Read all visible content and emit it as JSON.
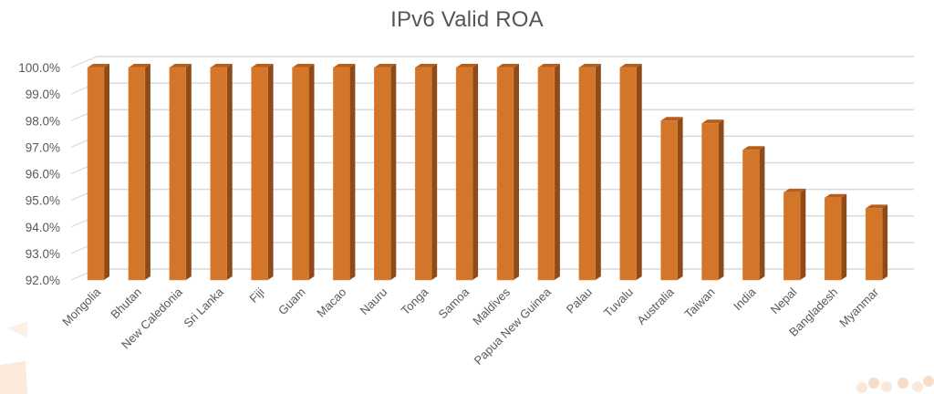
{
  "chart_data": {
    "type": "bar",
    "title": "IPv6 Valid ROA",
    "xlabel": "",
    "ylabel": "",
    "ylim": [
      92.0,
      100.0
    ],
    "yticks": [
      "92.0%",
      "93.0%",
      "94.0%",
      "95.0%",
      "96.0%",
      "97.0%",
      "98.0%",
      "99.0%",
      "100.0%"
    ],
    "grid": true,
    "legend": null,
    "style": "3d-column",
    "categories": [
      "Mongolia",
      "Bhutan",
      "New Caledonia",
      "Sri Lanka",
      "Fiji",
      "Guam",
      "Macao",
      "Nauru",
      "Tonga",
      "Samoa",
      "Maldives",
      "Papua New Guinea",
      "Palau",
      "Tuvalu",
      "Australia",
      "Taiwan",
      "India",
      "Nepal",
      "Bangladesh",
      "Myanmar"
    ],
    "values": [
      100.0,
      100.0,
      100.0,
      100.0,
      100.0,
      100.0,
      100.0,
      100.0,
      100.0,
      100.0,
      100.0,
      100.0,
      100.0,
      100.0,
      98.0,
      97.9,
      96.9,
      95.3,
      95.1,
      94.7
    ],
    "colors": {
      "bar_front": "#D4762A",
      "bar_side": "#8E4A17",
      "bar_top": "#B45F1F",
      "grid": "#D9D9D9",
      "text": "#595959",
      "title": "#555555"
    }
  }
}
